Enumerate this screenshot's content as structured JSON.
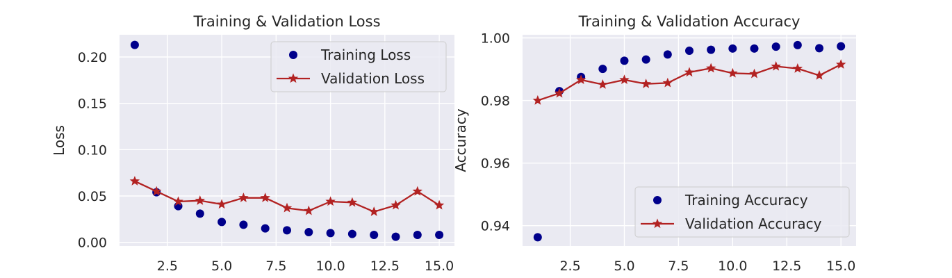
{
  "chart_data": [
    {
      "type": "line",
      "title": "Training & Validation Loss",
      "xlabel": "",
      "ylabel": "Loss",
      "xlim": [
        0.3,
        15.7
      ],
      "ylim": [
        -0.004,
        0.224
      ],
      "xticks": [
        2.5,
        5.0,
        7.5,
        10.0,
        12.5,
        15.0
      ],
      "xtick_labels": [
        "2.5",
        "5.0",
        "7.5",
        "10.0",
        "12.5",
        "15.0"
      ],
      "yticks": [
        0.0,
        0.05,
        0.1,
        0.15,
        0.2
      ],
      "ytick_labels": [
        "0.00",
        "0.05",
        "0.10",
        "0.15",
        "0.20"
      ],
      "grid": true,
      "legend_position": "top-right",
      "x": [
        1,
        2,
        3,
        4,
        5,
        6,
        7,
        8,
        9,
        10,
        11,
        12,
        13,
        14,
        15
      ],
      "series": [
        {
          "name": "Training Loss",
          "style": "scatter",
          "color": "#00008b",
          "values": [
            0.213,
            0.054,
            0.039,
            0.031,
            0.022,
            0.019,
            0.015,
            0.013,
            0.011,
            0.01,
            0.009,
            0.008,
            0.006,
            0.008,
            0.008
          ]
        },
        {
          "name": "Validation Loss",
          "style": "line-star",
          "color": "#b22222",
          "values": [
            0.066,
            0.055,
            0.044,
            0.045,
            0.041,
            0.048,
            0.048,
            0.037,
            0.034,
            0.044,
            0.043,
            0.033,
            0.04,
            0.055,
            0.04
          ]
        }
      ]
    },
    {
      "type": "line",
      "title": "Training & Validation Accuracy",
      "xlabel": "",
      "ylabel": "Accuracy",
      "xlim": [
        0.3,
        15.7
      ],
      "ylim": [
        0.9335,
        1.001
      ],
      "xticks": [
        2.5,
        5.0,
        7.5,
        10.0,
        12.5,
        15.0
      ],
      "xtick_labels": [
        "2.5",
        "5.0",
        "7.5",
        "10.0",
        "12.5",
        "15.0"
      ],
      "yticks": [
        0.94,
        0.96,
        0.98,
        1.0
      ],
      "ytick_labels": [
        "0.94",
        "0.96",
        "0.98",
        "1.00"
      ],
      "grid": true,
      "legend_position": "bottom-right",
      "x": [
        1,
        2,
        3,
        4,
        5,
        6,
        7,
        8,
        9,
        10,
        11,
        12,
        13,
        14,
        15
      ],
      "series": [
        {
          "name": "Training Accuracy",
          "style": "scatter",
          "color": "#00008b",
          "values": [
            0.9363,
            0.983,
            0.9875,
            0.9901,
            0.9927,
            0.9931,
            0.9947,
            0.9959,
            0.9962,
            0.9966,
            0.9966,
            0.9972,
            0.9977,
            0.9967,
            0.9973
          ]
        },
        {
          "name": "Validation Accuracy",
          "style": "line-star",
          "color": "#b22222",
          "values": [
            0.98,
            0.9823,
            0.9866,
            0.9851,
            0.9866,
            0.9853,
            0.9856,
            0.989,
            0.9903,
            0.9887,
            0.9885,
            0.9909,
            0.9902,
            0.988,
            0.9915
          ]
        }
      ]
    }
  ]
}
